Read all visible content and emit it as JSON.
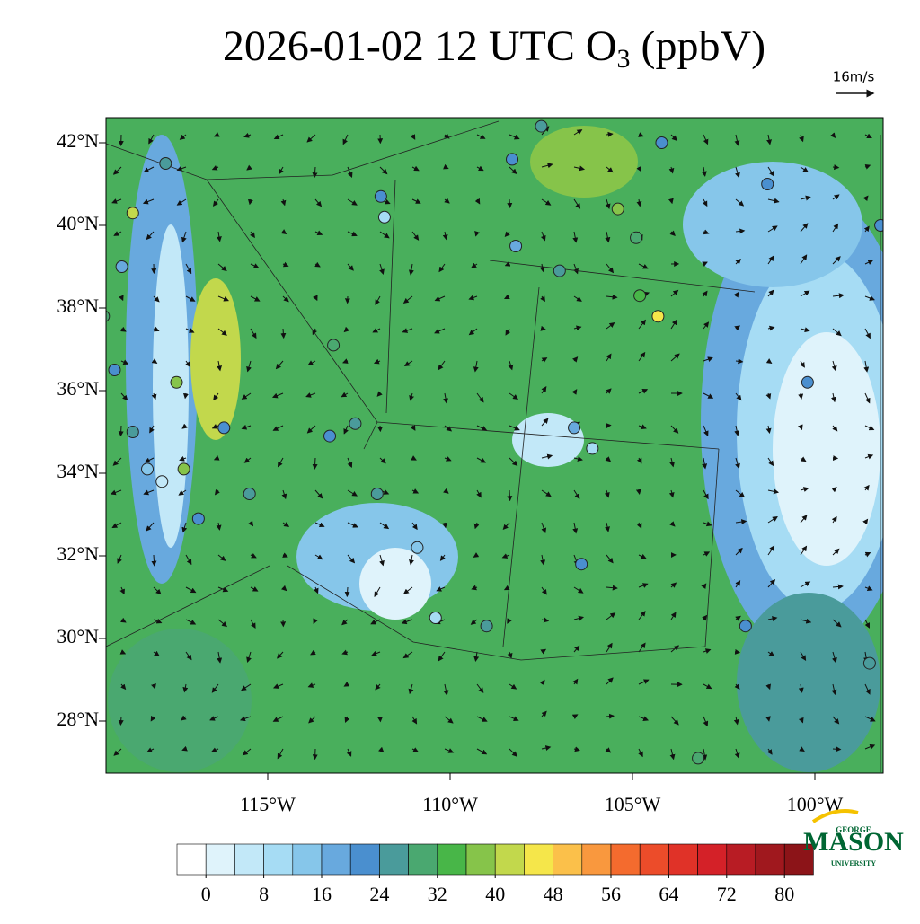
{
  "map": {
    "title": {
      "main": "2026-01-02 12 UTC O",
      "sub": "3",
      "tail": " (ppbV)"
    },
    "wind_scale": "16m/s",
    "lat_labels": [
      {
        "value": 42,
        "label": "42°N"
      },
      {
        "value": 40,
        "label": "40°N"
      },
      {
        "value": 38,
        "label": "38°N"
      },
      {
        "value": 36,
        "label": "36°N"
      },
      {
        "value": 34,
        "label": "34°N"
      },
      {
        "value": 32,
        "label": "32°N"
      },
      {
        "value": 30,
        "label": "30°N"
      },
      {
        "value": 28,
        "label": "28°N"
      }
    ],
    "lon_labels": [
      {
        "value": -115,
        "label": "115°W"
      },
      {
        "value": -110,
        "label": "110°W"
      },
      {
        "value": -105,
        "label": "105°W"
      },
      {
        "value": -100,
        "label": "100°W"
      }
    ],
    "colorbar": {
      "colors": [
        "#ffffff",
        "#dff3fb",
        "#c2e8f8",
        "#a6dcf4",
        "#86c6ea",
        "#68a9de",
        "#4a8fcf",
        "#4a9b9b",
        "#4aa870",
        "#48b648",
        "#86c44a",
        "#c2d84c",
        "#f5e64a",
        "#fbc04a",
        "#f9983e",
        "#f46b2e",
        "#ec4c2a",
        "#e03228",
        "#d42128",
        "#b81c24",
        "#a0181e",
        "#8c1418"
      ],
      "ticks": [
        0,
        8,
        16,
        24,
        32,
        40,
        48,
        56,
        64,
        72,
        80
      ]
    },
    "stations": [
      [
        -119.5,
        37.8,
        30
      ],
      [
        -119.2,
        36.5,
        20
      ],
      [
        -118.7,
        35.0,
        26
      ],
      [
        -118.3,
        34.1,
        14
      ],
      [
        -117.9,
        33.8,
        6
      ],
      [
        -117.3,
        34.1,
        36
      ],
      [
        -116.9,
        32.9,
        22
      ],
      [
        -118.7,
        40.3,
        42
      ],
      [
        -117.5,
        36.2,
        38
      ],
      [
        -116.2,
        35.1,
        20
      ],
      [
        -115.5,
        33.5,
        24
      ],
      [
        -113.2,
        37.1,
        30
      ],
      [
        -111.9,
        40.7,
        22
      ],
      [
        -111.8,
        40.2,
        10
      ],
      [
        -112.0,
        33.5,
        24
      ],
      [
        -110.9,
        32.2,
        14
      ],
      [
        -110.4,
        30.5,
        8
      ],
      [
        -108.2,
        39.5,
        18
      ],
      [
        -107.0,
        38.9,
        26
      ],
      [
        -104.9,
        39.7,
        30
      ],
      [
        -104.8,
        38.3,
        34
      ],
      [
        -104.3,
        37.8,
        44
      ],
      [
        -106.6,
        35.1,
        18
      ],
      [
        -106.1,
        34.6,
        10
      ],
      [
        -106.4,
        31.8,
        22
      ],
      [
        -108.3,
        41.6,
        22
      ],
      [
        -105.4,
        40.4,
        38
      ],
      [
        -104.2,
        42.0,
        20
      ],
      [
        -101.3,
        41.0,
        20
      ],
      [
        -98.2,
        40.0,
        20
      ],
      [
        -101.9,
        30.3,
        22
      ],
      [
        -98.5,
        29.4,
        26
      ],
      [
        -103.2,
        27.1,
        28
      ],
      [
        -100.2,
        36.2,
        20
      ],
      [
        -113.3,
        34.9,
        22
      ],
      [
        -117.8,
        41.5,
        24
      ],
      [
        -119.0,
        39.0,
        18
      ],
      [
        -112.6,
        35.2,
        26
      ],
      [
        -109.0,
        30.3,
        26
      ],
      [
        -107.5,
        42.4,
        24
      ]
    ]
  }
}
